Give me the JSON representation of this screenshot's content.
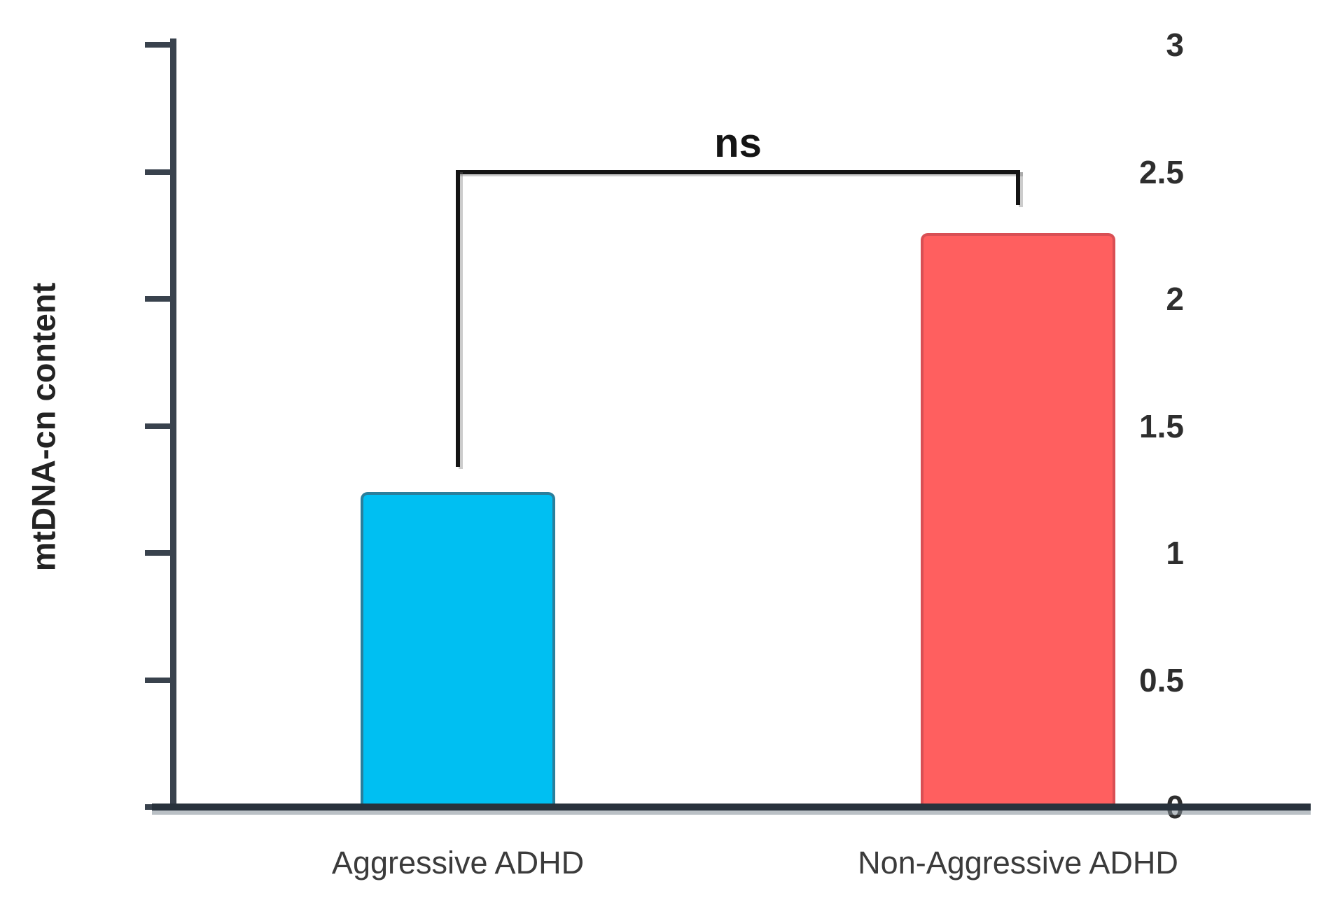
{
  "chart_data": {
    "type": "bar",
    "title": "",
    "xlabel": "",
    "ylabel": "mtDNA-cn content",
    "categories": [
      "Aggressive ADHD",
      "Non-Aggressive ADHD"
    ],
    "values": [
      1.24,
      2.26
    ],
    "bar_colors": [
      "#00bff2",
      "#ff5f5f"
    ],
    "bar_border_colors": [
      "#2a7f9c",
      "#d94f54"
    ],
    "ylim": [
      0,
      3
    ],
    "yticks": [
      0,
      0.5,
      1,
      1.5,
      2,
      2.5,
      3
    ],
    "ytick_labels": [
      "0",
      "0.5",
      "1",
      "1.5",
      "2",
      "2.5",
      "3"
    ],
    "grid": false,
    "legend": "none",
    "axis_color": "#39424d",
    "annotation": {
      "text": "ns",
      "level": 2.5,
      "left_arm_bottom": 1.34,
      "right_arm_bottom": 2.37,
      "color": "#141414"
    }
  }
}
